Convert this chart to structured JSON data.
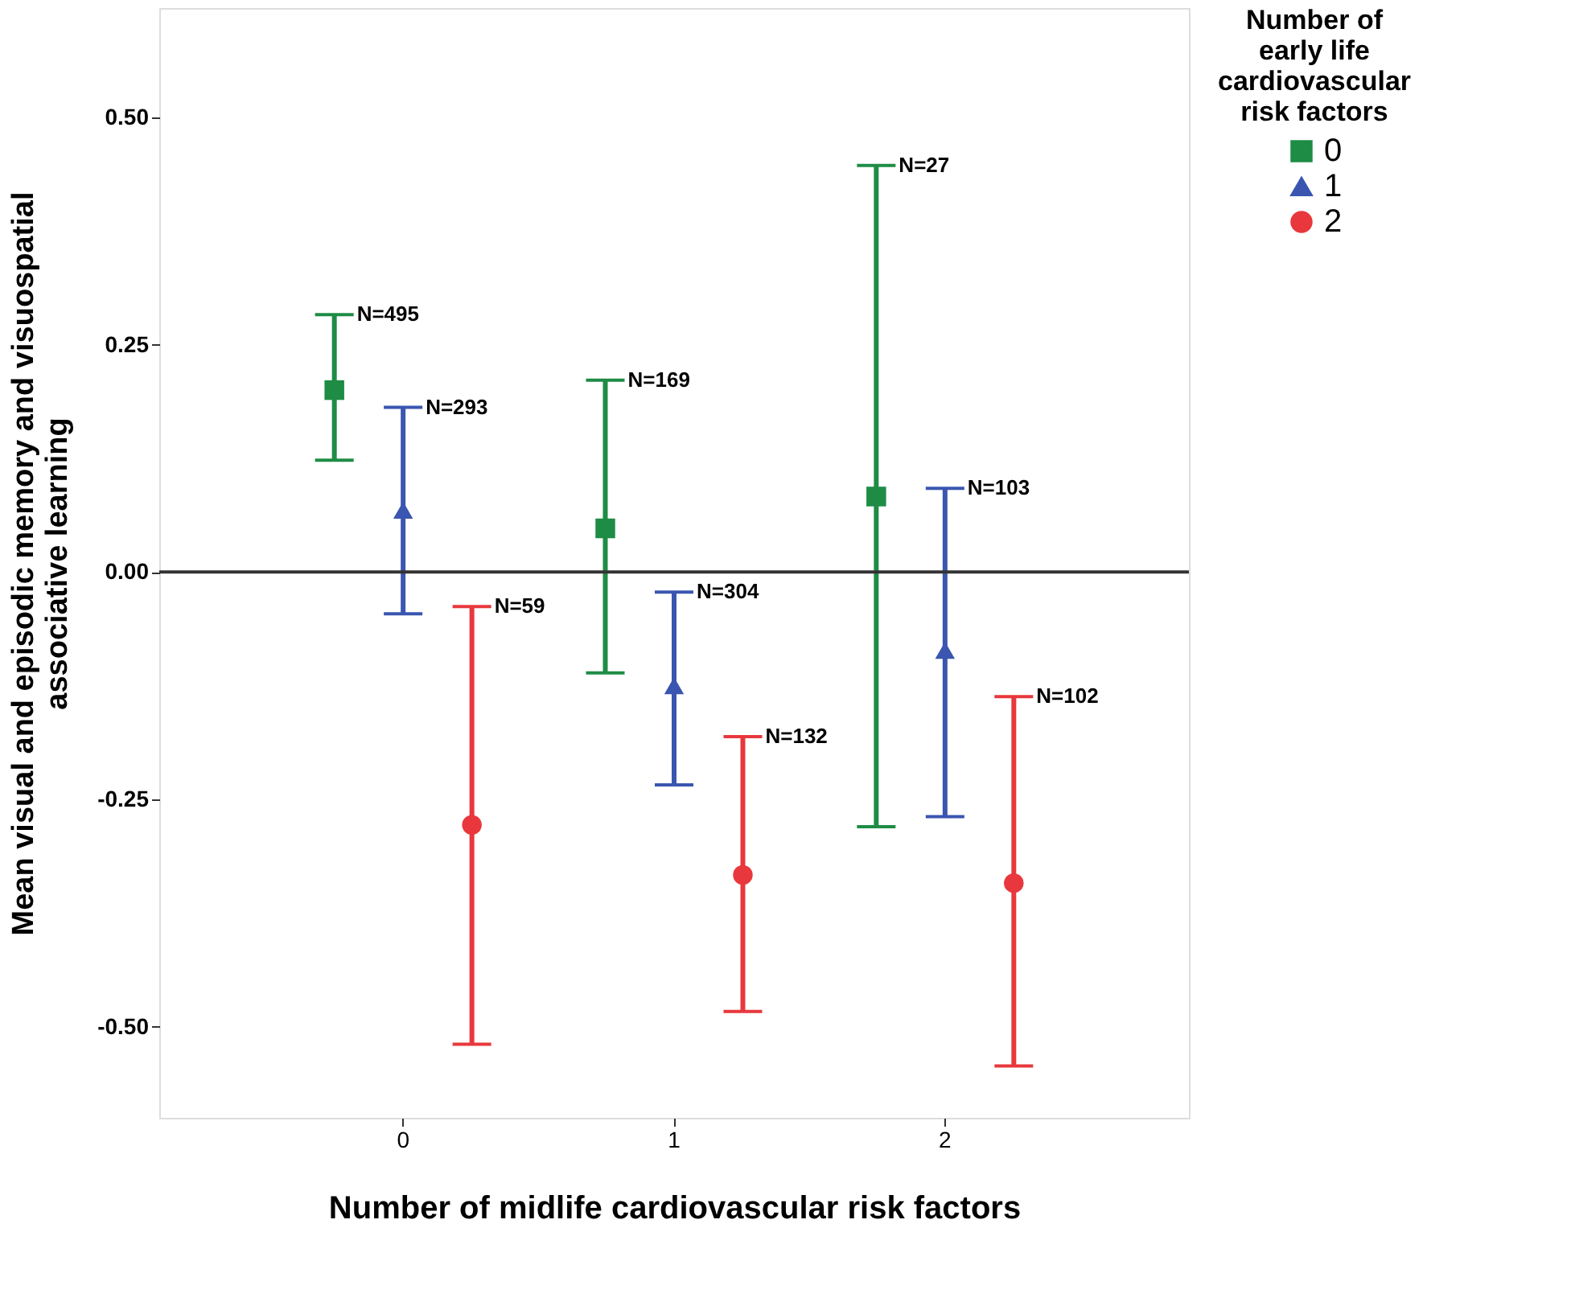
{
  "chart_data": {
    "type": "scatter",
    "xlabel": "Number of midlife cardiovascular risk factors",
    "ylabel": "Mean visual and episodic memory and visuospatial associative learning",
    "legend_title": "Number of early life cardiovascular risk factors",
    "categories": [
      "0",
      "1",
      "2"
    ],
    "series": [
      {
        "name": "0",
        "color": "#1e8c45",
        "marker": "square",
        "values": [
          0.2,
          0.048,
          0.083
        ],
        "errors": [
          [
            0.123,
            0.283
          ],
          [
            -0.111,
            0.211
          ],
          [
            -0.28,
            0.447
          ]
        ]
      },
      {
        "name": "1",
        "color": "#3a56b0",
        "marker": "triangle",
        "values": [
          0.068,
          -0.125,
          -0.086
        ],
        "errors": [
          [
            -0.046,
            0.181
          ],
          [
            -0.234,
            -0.022
          ],
          [
            -0.269,
            0.092
          ]
        ]
      },
      {
        "name": "2",
        "color": "#e8383d",
        "marker": "circle",
        "values": [
          -0.278,
          -0.333,
          -0.342
        ],
        "errors": [
          [
            -0.519,
            -0.038
          ],
          [
            -0.483,
            -0.181
          ],
          [
            -0.543,
            -0.137
          ]
        ]
      }
    ],
    "annotations": [
      "N=495",
      "N=293",
      "N=59",
      "N=169",
      "N=304",
      "N=132",
      "N=27",
      "N=103",
      "N=102"
    ],
    "ylim": [
      -0.6,
      0.62
    ],
    "yticks": [
      {
        "value": -0.5,
        "label": "-0.50"
      },
      {
        "value": -0.25,
        "label": "-0.25"
      },
      {
        "value": 0,
        "label": "0.00"
      },
      {
        "value": 0.25,
        "label": "0.25"
      },
      {
        "value": 0.5,
        "label": "0.50"
      }
    ],
    "ref_lines": [
      {
        "axis": "y",
        "value": 0,
        "color": "#333333"
      }
    ],
    "grid": false,
    "legend": "top right"
  }
}
